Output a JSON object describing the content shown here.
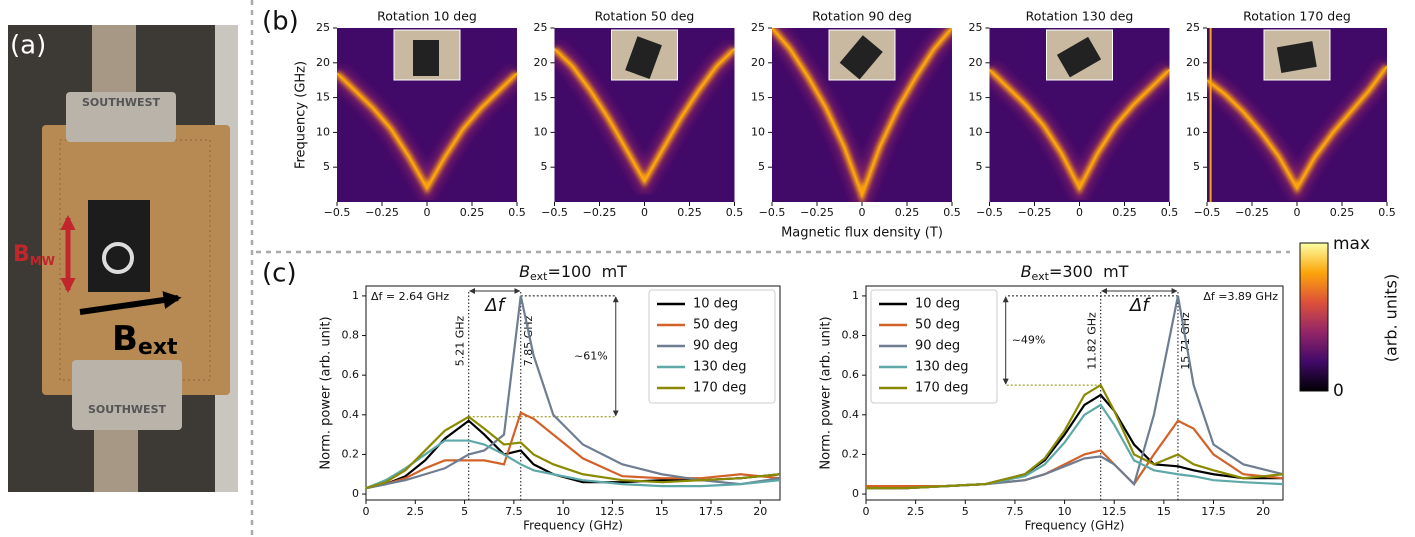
{
  "panel_labels": [
    "(a)",
    "(b)",
    "(c)"
  ],
  "photo": {
    "b_mw": "B",
    "mw_sub": "MW",
    "b_ext": "B",
    "ext_sub": "ext",
    "connector_top": "SOUTHWEST",
    "connector_bottom": "SOUTHWEST"
  },
  "chart_data": [
    {
      "type": "heatmap",
      "title": "Rotation 10 deg",
      "xlabel": "Magnetic flux density (T)",
      "ylabel": "Frequency (GHz)",
      "xlim": [
        -0.5,
        0.5
      ],
      "xticks": [
        {
          "value": -0.5,
          "label": "−0.5"
        },
        {
          "value": -0.25,
          "label": "−0.25"
        },
        0,
        0.25,
        0.5
      ],
      "ylim": [
        0,
        25
      ],
      "yticks": [
        5,
        10,
        15,
        20,
        25
      ],
      "branches": [
        {
          "x": [
            -0.5,
            -0.4,
            -0.3,
            -0.2,
            -0.1,
            0,
            0.1,
            0.2,
            0.3,
            0.4,
            0.5
          ],
          "y": [
            18.5,
            16,
            13.5,
            10.5,
            6.5,
            2,
            6.5,
            10.5,
            13.5,
            16,
            18.5
          ]
        }
      ]
    },
    {
      "type": "heatmap",
      "title": "Rotation 50 deg",
      "xlim": [
        -0.5,
        0.5
      ],
      "xticks": [
        {
          "value": -0.5,
          "label": "−0.5"
        },
        {
          "value": -0.25,
          "label": "−0.25"
        },
        0,
        0.25,
        0.5
      ],
      "ylim": [
        0,
        25
      ],
      "yticks": [
        5,
        10,
        15,
        20,
        25
      ],
      "branches": [
        {
          "x": [
            -0.5,
            -0.4,
            -0.3,
            -0.2,
            -0.1,
            0,
            0.1,
            0.2,
            0.3,
            0.4,
            0.5
          ],
          "y": [
            22,
            19.5,
            16,
            12,
            7.5,
            3,
            7.5,
            12,
            16,
            19.5,
            22
          ]
        }
      ]
    },
    {
      "type": "heatmap",
      "title": "Rotation 90 deg",
      "xlim": [
        -0.5,
        0.5
      ],
      "xticks": [
        {
          "value": -0.5,
          "label": "−0.5"
        },
        {
          "value": -0.25,
          "label": "−0.25"
        },
        0,
        0.25,
        0.5
      ],
      "ylim": [
        0,
        25
      ],
      "yticks": [
        5,
        10,
        15,
        20,
        25
      ],
      "branches": [
        {
          "x": [
            -0.5,
            -0.4,
            -0.3,
            -0.2,
            -0.1,
            0,
            0.1,
            0.2,
            0.3,
            0.4,
            0.5
          ],
          "y": [
            25,
            22,
            18,
            13.5,
            8,
            1,
            8,
            13.5,
            18,
            22,
            25
          ]
        }
      ]
    },
    {
      "type": "heatmap",
      "title": "Rotation 130 deg",
      "xlim": [
        -0.5,
        0.5
      ],
      "xticks": [
        {
          "value": -0.5,
          "label": "−0.5"
        },
        {
          "value": -0.25,
          "label": "−0.25"
        },
        0,
        0.25,
        0.5
      ],
      "ylim": [
        0,
        25
      ],
      "yticks": [
        5,
        10,
        15,
        20,
        25
      ],
      "branches": [
        {
          "x": [
            -0.5,
            -0.4,
            -0.3,
            -0.2,
            -0.1,
            0,
            0.1,
            0.2,
            0.3,
            0.4,
            0.5
          ],
          "y": [
            19,
            16.5,
            14,
            11,
            7,
            2,
            7,
            11,
            14,
            16.5,
            19
          ]
        }
      ]
    },
    {
      "type": "heatmap",
      "title": "Rotation 170 deg",
      "xlim": [
        -0.5,
        0.5
      ],
      "xticks": [
        {
          "value": -0.5,
          "label": "−0.5"
        },
        {
          "value": -0.25,
          "label": "−0.25"
        },
        0,
        0.25,
        0.5
      ],
      "ylim": [
        0,
        25
      ],
      "yticks": [
        5,
        10,
        15,
        20,
        25
      ],
      "branches": [
        {
          "x": [
            -0.5,
            -0.4,
            -0.3,
            -0.2,
            -0.1,
            0,
            0.1,
            0.2,
            0.3,
            0.4,
            0.5
          ],
          "y": [
            17.5,
            15.5,
            13,
            10,
            6.5,
            2,
            6.5,
            10,
            13,
            16,
            19.5
          ]
        },
        {
          "x": [
            -0.48,
            -0.48
          ],
          "y": [
            0,
            25
          ]
        }
      ]
    },
    {
      "type": "colorbar",
      "label": "(arb. units)",
      "tick_labels": [
        "max",
        "0"
      ],
      "colors": [
        "#000004",
        "#420a68",
        "#932667",
        "#dd513a",
        "#fca50a",
        "#fcffa4"
      ]
    },
    {
      "type": "line",
      "title": {
        "symbol": "B",
        "sub": "ext",
        "rest": "=100  mT"
      },
      "xlabel": "Frequency (GHz)",
      "ylabel": "Norm. power (arb. unit)",
      "xlim": [
        0,
        21
      ],
      "xticks": [
        0,
        2.5,
        5,
        7.5,
        10,
        12.5,
        15,
        17.5,
        20
      ],
      "ylim": [
        -0.03,
        1.05
      ],
      "yticks": [
        0,
        0.2,
        0.4,
        0.6,
        0.8,
        1
      ],
      "legend": "upper right",
      "x": [
        0,
        1,
        2,
        3,
        4,
        5.21,
        6,
        7,
        7.85,
        8.5,
        9.5,
        11,
        13,
        15,
        17,
        19,
        21
      ],
      "series": [
        {
          "name": "10 deg",
          "color": "#000000",
          "values": [
            0.03,
            0.05,
            0.09,
            0.17,
            0.28,
            0.37,
            0.3,
            0.2,
            0.22,
            0.15,
            0.1,
            0.06,
            0.06,
            0.07,
            0.07,
            0.08,
            0.1
          ]
        },
        {
          "name": "50 deg",
          "color": "#d2622a",
          "values": [
            0.03,
            0.05,
            0.08,
            0.13,
            0.17,
            0.17,
            0.17,
            0.15,
            0.41,
            0.38,
            0.3,
            0.18,
            0.09,
            0.08,
            0.08,
            0.1,
            0.08
          ]
        },
        {
          "name": "90 deg",
          "color": "#6e7d91",
          "values": [
            0.03,
            0.05,
            0.07,
            0.1,
            0.13,
            0.2,
            0.22,
            0.3,
            1.0,
            0.7,
            0.4,
            0.25,
            0.15,
            0.1,
            0.07,
            0.05,
            0.08
          ]
        },
        {
          "name": "130 deg",
          "color": "#5fa8a8",
          "values": [
            0.03,
            0.07,
            0.13,
            0.2,
            0.27,
            0.27,
            0.25,
            0.2,
            0.15,
            0.12,
            0.1,
            0.07,
            0.05,
            0.04,
            0.04,
            0.05,
            0.07
          ]
        },
        {
          "name": "170 deg",
          "color": "#8a8a00",
          "values": [
            0.03,
            0.06,
            0.12,
            0.22,
            0.32,
            0.39,
            0.33,
            0.25,
            0.26,
            0.2,
            0.15,
            0.1,
            0.07,
            0.06,
            0.07,
            0.08,
            0.1
          ]
        }
      ],
      "delta_f_text": "Δf = 2.64 GHz",
      "delta_f_symbol": "Δf",
      "vlines": [
        {
          "value": 5.21,
          "label": "5.21 GHz"
        },
        {
          "value": 7.85,
          "label": "7.85 GHz"
        }
      ],
      "hlines": [
        0.39,
        1
      ],
      "ratio_text": "~61%"
    },
    {
      "type": "line",
      "title": {
        "symbol": "B",
        "sub": "ext",
        "rest": "=300  mT"
      },
      "xlabel": "Frequency (GHz)",
      "ylabel": "Norm. power (arb. unit)",
      "xlim": [
        0,
        21
      ],
      "xticks": [
        0,
        2.5,
        5,
        7.5,
        10,
        12.5,
        15,
        17.5,
        20
      ],
      "ylim": [
        -0.03,
        1.05
      ],
      "yticks": [
        0,
        0.2,
        0.4,
        0.6,
        0.8,
        1
      ],
      "legend": "upper left",
      "x": [
        0,
        2,
        4,
        6,
        8,
        9,
        10,
        11,
        11.82,
        12.5,
        13.5,
        14.5,
        15.71,
        16.5,
        17.5,
        19,
        21
      ],
      "series": [
        {
          "name": "10 deg",
          "color": "#000000",
          "values": [
            0.03,
            0.03,
            0.04,
            0.05,
            0.1,
            0.17,
            0.3,
            0.45,
            0.5,
            0.42,
            0.25,
            0.15,
            0.14,
            0.12,
            0.1,
            0.08,
            0.08
          ]
        },
        {
          "name": "50 deg",
          "color": "#d2622a",
          "values": [
            0.04,
            0.04,
            0.04,
            0.05,
            0.07,
            0.1,
            0.15,
            0.2,
            0.22,
            0.15,
            0.05,
            0.2,
            0.37,
            0.33,
            0.2,
            0.1,
            0.08
          ]
        },
        {
          "name": "90 deg",
          "color": "#6e7d91",
          "values": [
            0.03,
            0.03,
            0.04,
            0.05,
            0.07,
            0.1,
            0.14,
            0.18,
            0.19,
            0.15,
            0.05,
            0.4,
            1.0,
            0.55,
            0.25,
            0.15,
            0.1
          ]
        },
        {
          "name": "130 deg",
          "color": "#5fa8a8",
          "values": [
            0.03,
            0.03,
            0.04,
            0.05,
            0.09,
            0.15,
            0.26,
            0.4,
            0.45,
            0.35,
            0.17,
            0.12,
            0.1,
            0.09,
            0.07,
            0.06,
            0.05
          ]
        },
        {
          "name": "170 deg",
          "color": "#8a8a00",
          "values": [
            0.03,
            0.03,
            0.04,
            0.05,
            0.1,
            0.18,
            0.32,
            0.5,
            0.55,
            0.42,
            0.2,
            0.15,
            0.2,
            0.15,
            0.12,
            0.08,
            0.1
          ]
        }
      ],
      "delta_f_text": "Δf =3.89 GHz",
      "delta_f_symbol": "Δf",
      "vlines": [
        {
          "value": 11.82,
          "label": "11.82 GHz"
        },
        {
          "value": 15.71,
          "label": "15.71 GHz"
        }
      ],
      "hlines": [
        0.55,
        1
      ],
      "ratio_text": "~49%"
    }
  ]
}
